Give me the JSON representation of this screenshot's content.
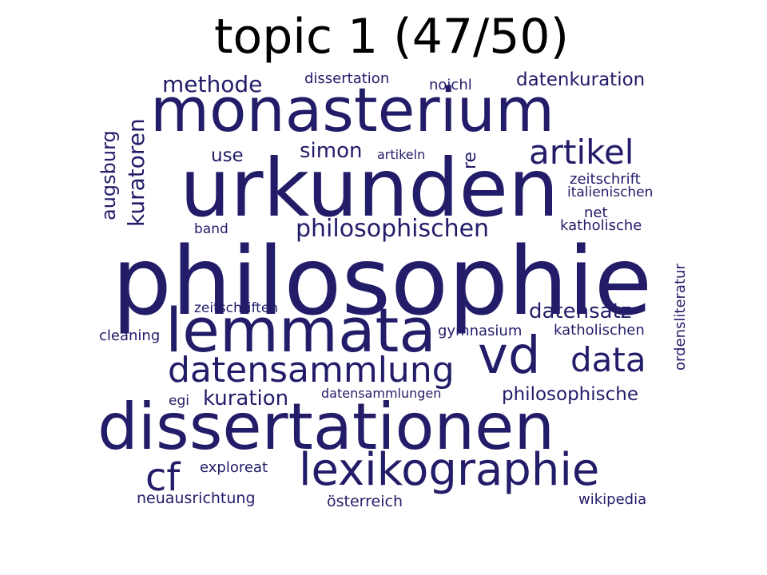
{
  "title": "topic 1 (47/50)",
  "word_color": "#221c69",
  "words": [
    "philosophie",
    "urkunden",
    "monasterium",
    "dissertationen",
    "lemmata",
    "vd",
    "lexikographie",
    "datensammlung",
    "artikel",
    "data",
    "cf",
    "philosophischen",
    "datensatz",
    "methode",
    "kuration",
    "simon",
    "philosophische",
    "datenkuration",
    "kuratoren",
    "augsburg",
    "re",
    "use",
    "dissertation",
    "noichl",
    "artikeln",
    "zeitschrift",
    "italienischen",
    "net",
    "katholische",
    "band",
    "zeitschriften",
    "ordensliteratur",
    "gymnasium",
    "katholischen",
    "cleaning",
    "egi",
    "datensammlungen",
    "exploreat",
    "neuausrichtung",
    "österreich",
    "wikipedia"
  ]
}
